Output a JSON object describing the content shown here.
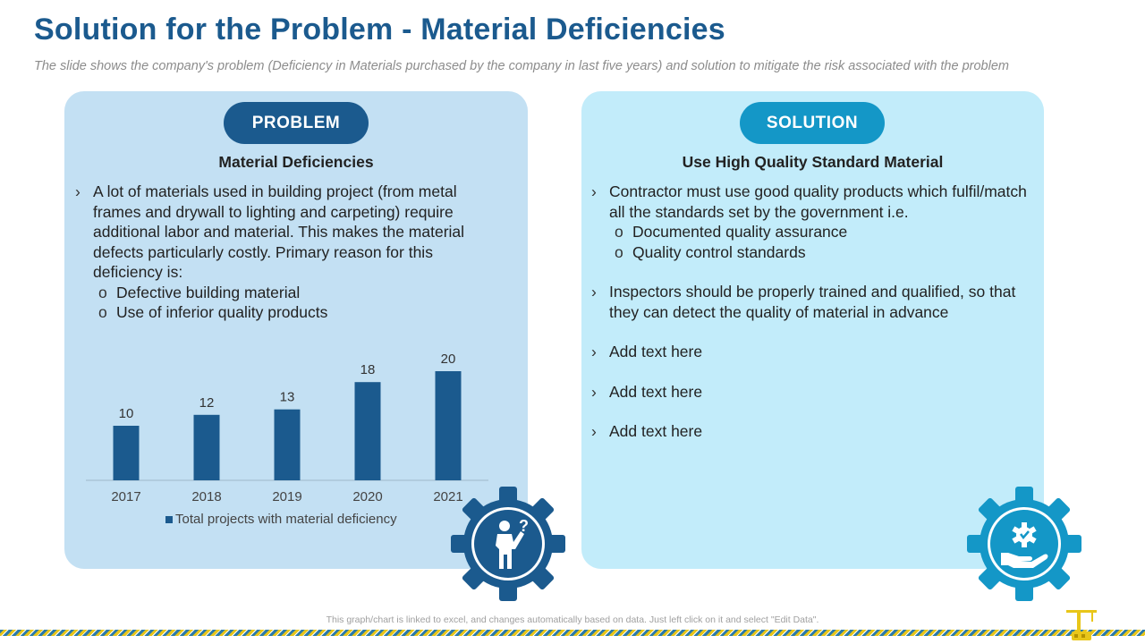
{
  "slide": {
    "title": "Solution for the Problem - Material Deficiencies",
    "subtitle": "The slide shows the company's problem (Deficiency in Materials purchased by the company in last five years) and solution to mitigate the risk associated with the problem",
    "footer_note": "This graph/chart is linked to excel, and changes automatically based on data. Just left click on it and select \"Edit Data\"."
  },
  "problem": {
    "label": "PROBLEM",
    "heading": "Material Deficiencies",
    "bullet": "A lot of materials used in building project (from metal frames and drywall to lighting and carpeting) require additional labor and material.  This makes the material defects particularly costly. Primary reason for this deficiency is:",
    "sub_items": [
      "Defective building material",
      "Use of inferior quality products"
    ],
    "icon": "person-question-gear-icon"
  },
  "solution": {
    "label": "SOLUTION",
    "heading": "Use High Quality Standard Material",
    "bullets": [
      "Contractor must use good quality products which fulfil/match all the standards set by the government i.e.",
      "Inspectors should be properly trained and qualified, so that they can detect the quality of material in advance",
      "Add text here",
      "Add text here",
      "Add text here"
    ],
    "sub_items": [
      "Documented quality assurance",
      "Quality control standards"
    ],
    "icon": "hand-gear-icon"
  },
  "colors": {
    "title": "#1b5a8e",
    "problem_pill": "#1b5a8e",
    "solution_pill": "#1497c7",
    "problem_panel": "#c3e0f3",
    "solution_panel": "#c2ecfa",
    "bar": "#1b5a8e"
  },
  "chart_data": {
    "type": "bar",
    "categories": [
      "2017",
      "2018",
      "2019",
      "2020",
      "2021"
    ],
    "series": [
      {
        "name": "Total projects with material deficiency",
        "values": [
          10,
          12,
          13,
          18,
          20
        ]
      }
    ],
    "title": "",
    "xlabel": "",
    "ylabel": "",
    "ylim": [
      0,
      20
    ],
    "data_labels": true,
    "grid": false,
    "legend_position": "bottom"
  }
}
